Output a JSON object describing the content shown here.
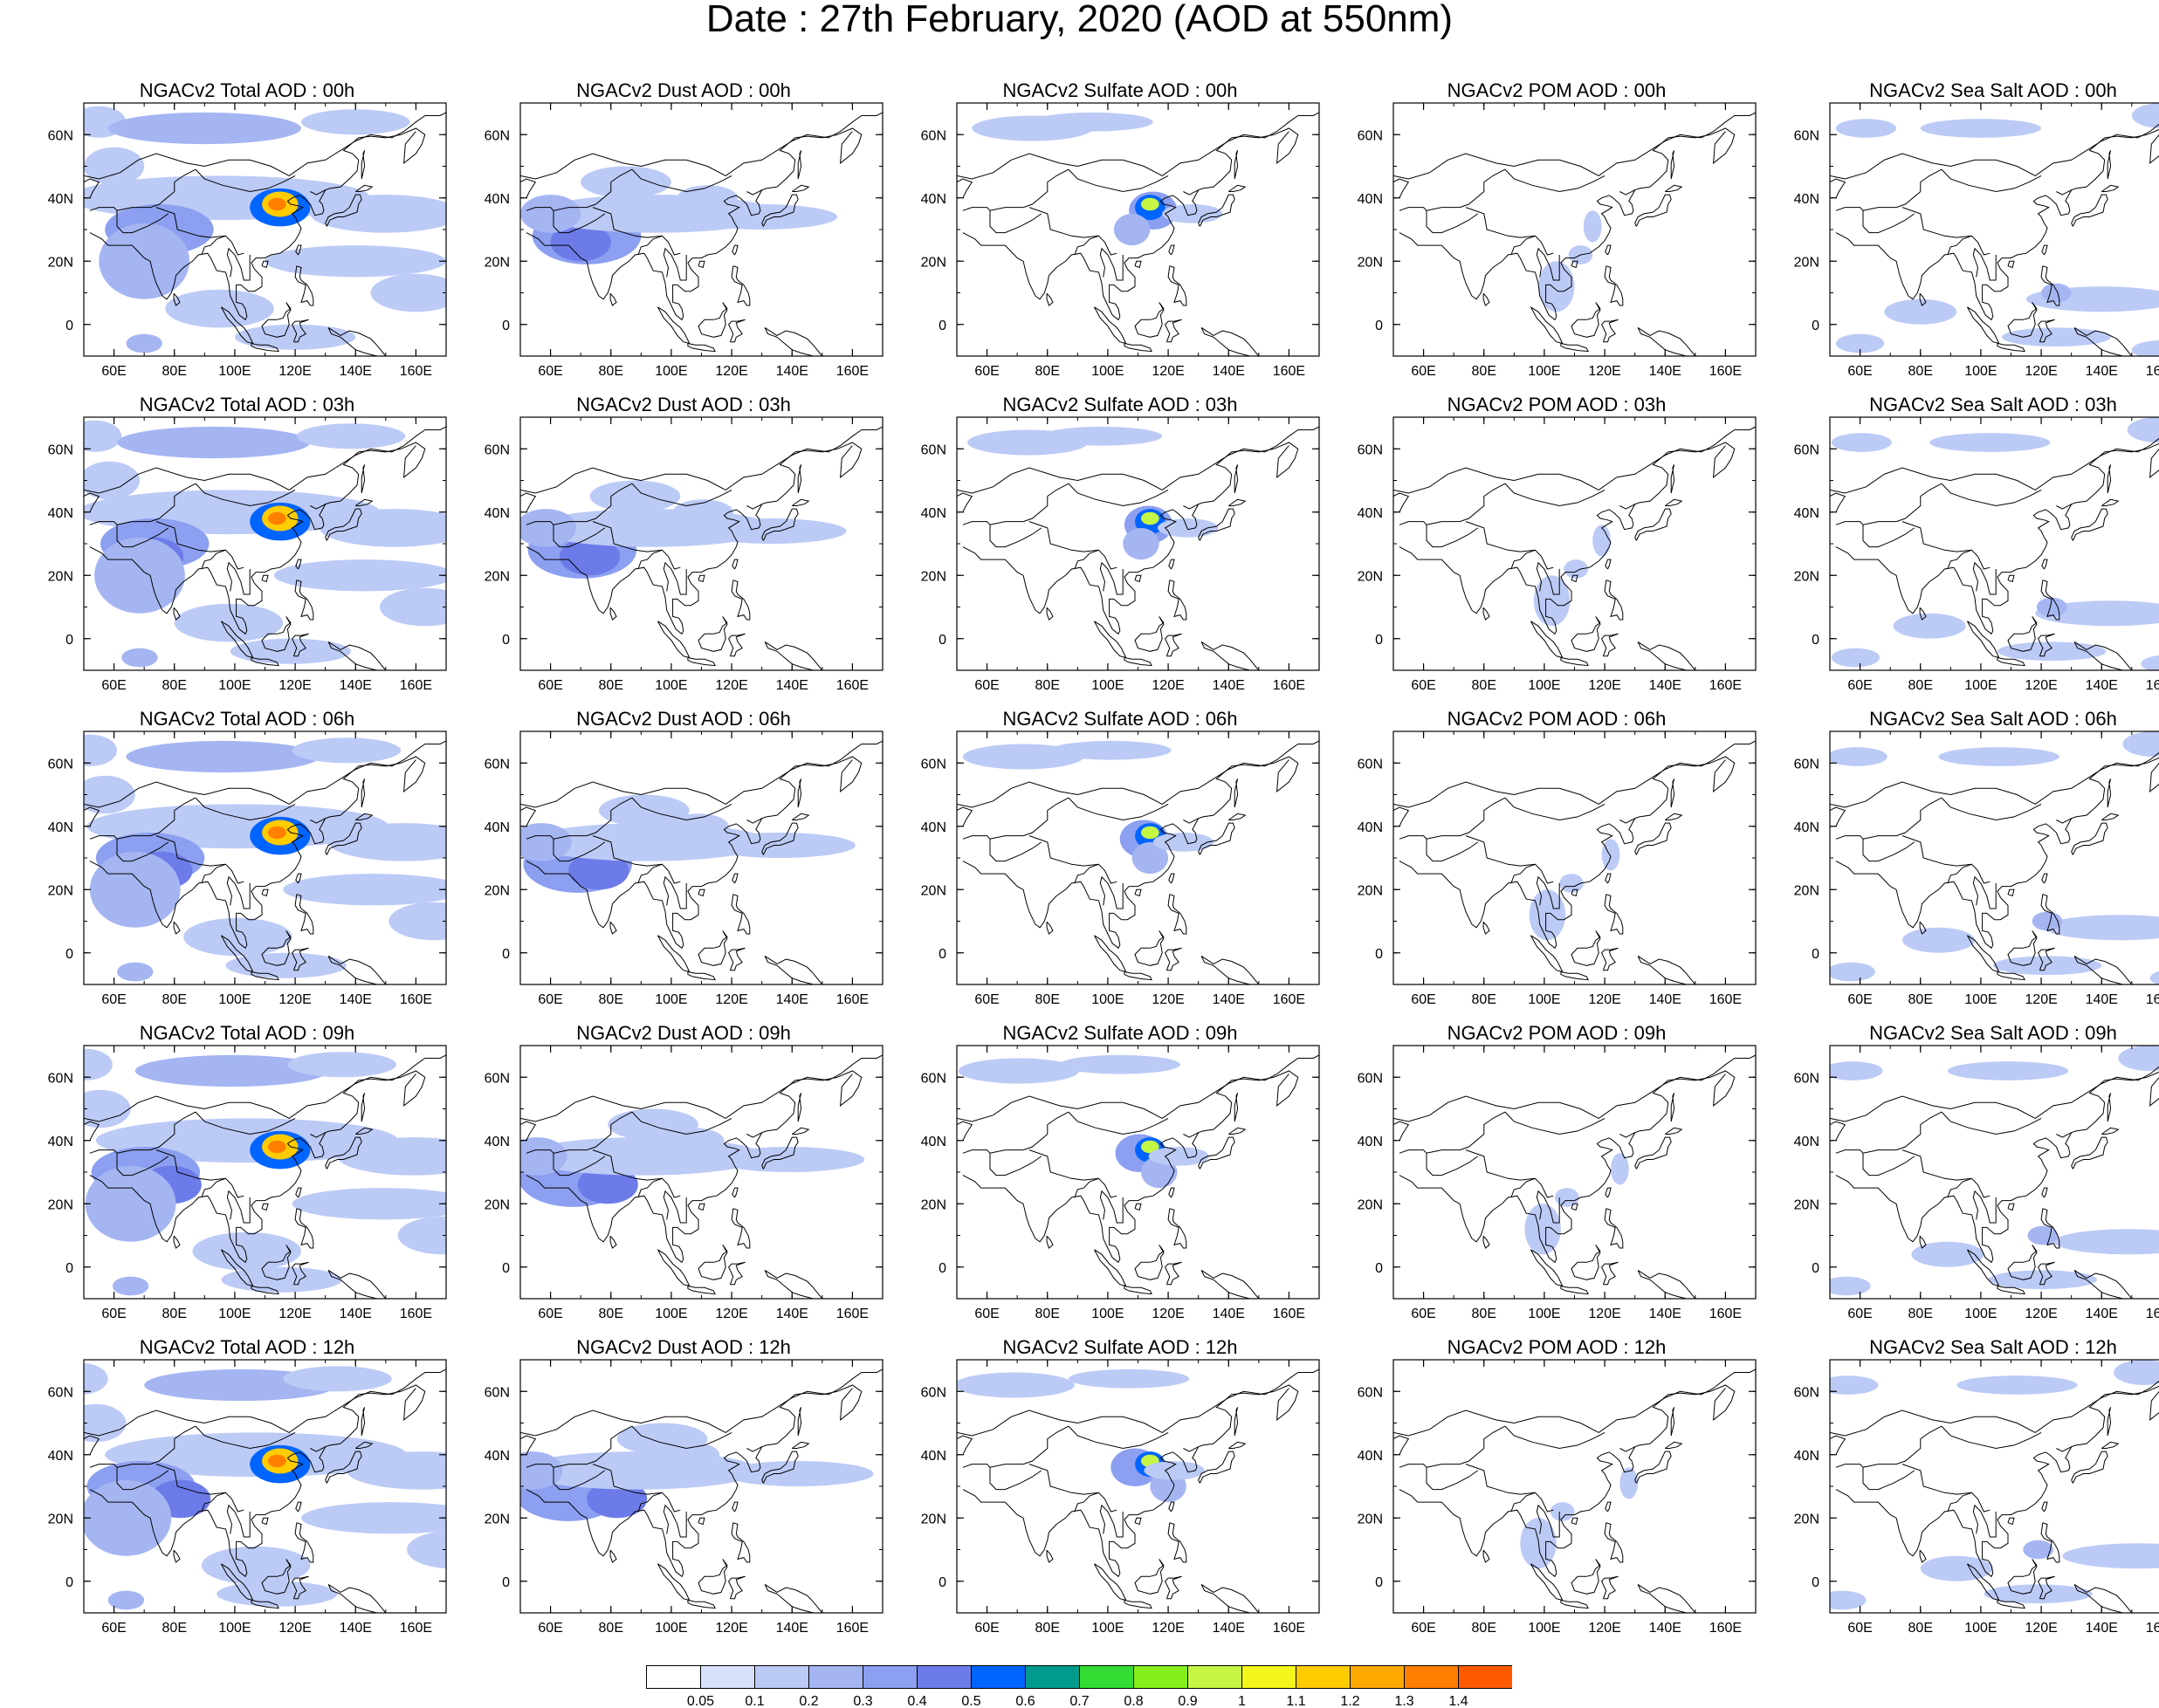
{
  "title": "Date : 27th February, 2020 (AOD at 550nm)",
  "panel_rows": [
    {
      "titles": [
        "NGACv2 Total AOD : 00h",
        "NGACv2 Dust AOD : 00h",
        "NGACv2 Sulfate AOD : 00h",
        "NGACv2 POM AOD : 00h",
        "NGACv2 Sea Salt AOD : 00h"
      ]
    },
    {
      "titles": [
        "NGACv2 Total AOD : 03h",
        "NGACv2 Dust AOD : 03h",
        "NGACv2 Sulfate AOD : 03h",
        "NGACv2 POM AOD : 03h",
        "NGACv2 Sea Salt AOD : 03h"
      ]
    },
    {
      "titles": [
        "NGACv2 Total AOD : 06h",
        "NGACv2 Dust AOD : 06h",
        "NGACv2 Sulfate AOD : 06h",
        "NGACv2 POM AOD : 06h",
        "NGACv2 Sea Salt AOD : 06h"
      ]
    },
    {
      "titles": [
        "NGACv2 Total AOD : 09h",
        "NGACv2 Dust AOD : 09h",
        "NGACv2 Sulfate AOD : 09h",
        "NGACv2 POM AOD : 09h",
        "NGACv2 Sea Salt  AOD : 09h"
      ]
    },
    {
      "titles": [
        "NGACv2 Total AOD  : 12h",
        "NGACv2 Dust AOD : 12h",
        "NGACv2 Sulfate AOD : 12h",
        "NGACv2 POM  AOD : 12h",
        "NGACv2 Sea Salt  AOD : 12h"
      ]
    }
  ],
  "map": {
    "lon_range": [
      50,
      170
    ],
    "lat_range": [
      -10,
      70
    ],
    "lon_ticks": [
      "60E",
      "80E",
      "100E",
      "120E",
      "140E",
      "160E"
    ],
    "lat_ticks": [
      "60N",
      "40N",
      "20N",
      "0"
    ]
  },
  "colorbar": {
    "colors": [
      "#ffffff",
      "#d7e1fb",
      "#bccaf6",
      "#a5b5f2",
      "#8c9ff0",
      "#6d7be9",
      "#0064ff",
      "#009b8c",
      "#33dd33",
      "#85ef1b",
      "#c5f744",
      "#f4f71b",
      "#ffcc00",
      "#ffaa00",
      "#ff8000",
      "#ff5a00",
      "#ff1a10"
    ],
    "labels": [
      "0.05",
      "0.1",
      "0.2",
      "0.3",
      "0.4",
      "0.5",
      "0.6",
      "0.7",
      "0.8",
      "0.9",
      "1",
      "1.1",
      "1.2",
      "1.3",
      "1.4"
    ]
  }
}
